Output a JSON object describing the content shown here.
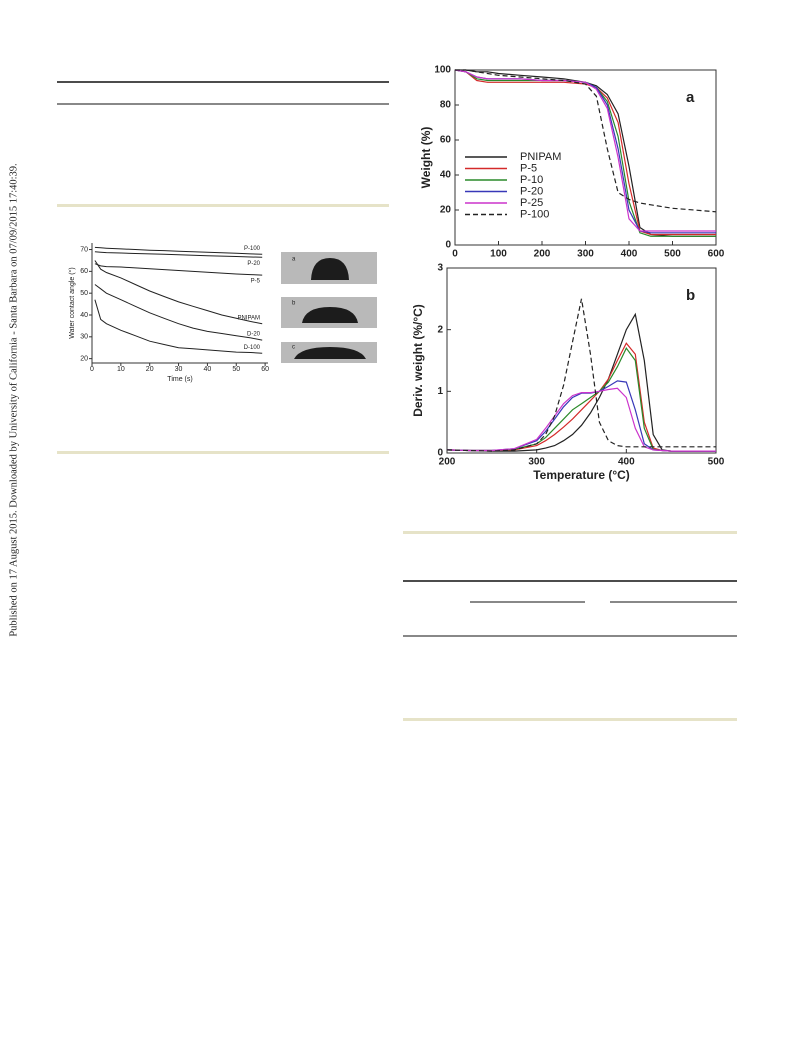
{
  "side_note": "Published on 17 August 2015. Downloaded by University of California - Santa Barbara on 07/09/2015 17:40:39.",
  "images": [
    {
      "label": "a"
    },
    {
      "label": "b"
    },
    {
      "label": "c"
    }
  ],
  "chart_data": [
    {
      "type": "line",
      "x_label": "Time (s)",
      "y_label": "Water contact angle (°)",
      "legend": "line-end",
      "x": [
        1,
        3,
        5,
        10,
        15,
        20,
        25,
        30,
        35,
        40,
        45,
        50,
        55,
        59
      ],
      "xlim": [
        0,
        61
      ],
      "ylim": [
        18,
        73
      ],
      "xticks": [
        0,
        10,
        20,
        30,
        40,
        50,
        60
      ],
      "yticks": [
        20,
        30,
        40,
        50,
        60,
        70
      ],
      "series": [
        {
          "name": "P-100",
          "color": "#222222",
          "values": [
            71,
            70.8,
            70.6,
            70.3,
            70,
            69.7,
            69.5,
            69.2,
            69,
            68.8,
            68.5,
            68.3,
            68,
            67.8
          ]
        },
        {
          "name": "P-20",
          "color": "#222222",
          "values": [
            69,
            68.8,
            68.6,
            68.4,
            68.2,
            68,
            67.8,
            67.6,
            67.4,
            67.2,
            67,
            66.8,
            66.6,
            66.5
          ]
        },
        {
          "name": "P-5",
          "color": "#222222",
          "values": [
            63.5,
            62.5,
            62.2,
            62,
            61.6,
            61.2,
            60.8,
            60.4,
            60,
            59.6,
            59.2,
            58.8,
            58.5,
            58.3
          ]
        },
        {
          "name": "PNIPAM",
          "color": "#222222",
          "values": [
            65,
            61,
            59.5,
            57,
            54,
            51,
            48.5,
            46,
            44,
            42,
            40,
            38.5,
            37,
            36
          ]
        },
        {
          "name": "D-20",
          "color": "#222222",
          "values": [
            54,
            52,
            50,
            47,
            44,
            41,
            38.5,
            36,
            34,
            32.5,
            31.5,
            30.5,
            29.5,
            28.5
          ]
        },
        {
          "name": "D-100",
          "color": "#222222",
          "values": [
            47,
            38,
            36,
            33,
            30.5,
            28,
            26.5,
            25,
            24.5,
            24,
            23.5,
            23,
            22.8,
            22.5
          ]
        }
      ]
    },
    {
      "type": "line",
      "panel_label": "a",
      "y_label": "Weight (%)",
      "legend": "left",
      "frame": true,
      "x": [
        0,
        25,
        50,
        75,
        100,
        150,
        200,
        250,
        300,
        325,
        350,
        375,
        400,
        425,
        450,
        500,
        550,
        600
      ],
      "xlim": [
        0,
        600
      ],
      "ylim": [
        0,
        100
      ],
      "xticks": [
        0,
        100,
        200,
        300,
        400,
        500,
        600
      ],
      "yticks": [
        0,
        20,
        40,
        60,
        80,
        100
      ],
      "series": [
        {
          "name": "PNIPAM",
          "color": "#222222",
          "style": "solid",
          "values": [
            100,
            100,
            99,
            99,
            98,
            97,
            96,
            95,
            93,
            91,
            86,
            75,
            45,
            10,
            6,
            5,
            5,
            5
          ]
        },
        {
          "name": "P-5",
          "color": "#d42a2a",
          "style": "solid",
          "values": [
            100,
            99,
            94,
            93,
            93,
            93,
            93,
            93,
            92,
            90,
            84,
            70,
            35,
            8,
            6,
            6,
            6,
            6
          ]
        },
        {
          "name": "P-10",
          "color": "#2a8a2a",
          "style": "solid",
          "values": [
            100,
            99,
            95,
            94,
            94,
            94,
            94,
            94,
            93,
            90,
            82,
            62,
            25,
            7,
            5,
            5,
            5,
            5
          ]
        },
        {
          "name": "P-20",
          "color": "#3838b8",
          "style": "solid",
          "values": [
            100,
            99,
            96,
            95,
            95,
            95,
            94,
            94,
            93,
            90,
            80,
            55,
            20,
            8,
            7,
            7,
            7,
            7
          ]
        },
        {
          "name": "P-25",
          "color": "#cc33cc",
          "style": "solid",
          "values": [
            100,
            99,
            96,
            95,
            95,
            95,
            94,
            94,
            93,
            89,
            78,
            50,
            15,
            8,
            8,
            8,
            8,
            8
          ]
        },
        {
          "name": "P-100",
          "color": "#222222",
          "style": "dashed",
          "values": [
            100,
            100,
            99,
            98,
            97,
            96,
            95,
            94,
            92,
            85,
            55,
            30,
            26,
            24,
            23,
            21,
            20,
            19
          ]
        }
      ]
    },
    {
      "type": "line",
      "panel_label": "b",
      "x_label": "Temperature (°C)",
      "y_label": "Deriv. weight (%/°C)",
      "frame": true,
      "x": [
        200,
        225,
        250,
        275,
        300,
        310,
        320,
        330,
        340,
        350,
        360,
        370,
        380,
        390,
        400,
        410,
        420,
        430,
        440,
        450,
        475,
        500
      ],
      "xlim": [
        200,
        500
      ],
      "ylim": [
        0,
        3
      ],
      "xticks": [
        200,
        300,
        400,
        500
      ],
      "yticks": [
        0,
        1,
        2,
        3
      ],
      "series": [
        {
          "color": "#222222",
          "style": "solid",
          "values": [
            0.05,
            0.04,
            0.03,
            0.03,
            0.05,
            0.08,
            0.12,
            0.2,
            0.3,
            0.45,
            0.65,
            0.9,
            1.2,
            1.6,
            2.0,
            2.25,
            1.5,
            0.3,
            0.05,
            0.03,
            0.03,
            0.03
          ]
        },
        {
          "color": "#d42a2a",
          "style": "solid",
          "values": [
            0.05,
            0.04,
            0.04,
            0.05,
            0.12,
            0.2,
            0.3,
            0.42,
            0.55,
            0.7,
            0.85,
            1.0,
            1.2,
            1.5,
            1.78,
            1.6,
            0.5,
            0.08,
            0.04,
            0.03,
            0.03,
            0.03
          ]
        },
        {
          "color": "#2a8a2a",
          "style": "solid",
          "values": [
            0.05,
            0.04,
            0.04,
            0.06,
            0.15,
            0.25,
            0.4,
            0.55,
            0.7,
            0.8,
            0.9,
            1.0,
            1.15,
            1.4,
            1.7,
            1.5,
            0.4,
            0.06,
            0.04,
            0.03,
            0.03,
            0.03
          ]
        },
        {
          "color": "#3838b8",
          "style": "solid",
          "values": [
            0.05,
            0.04,
            0.04,
            0.07,
            0.2,
            0.35,
            0.55,
            0.75,
            0.9,
            0.97,
            0.97,
            1.0,
            1.08,
            1.17,
            1.15,
            0.7,
            0.15,
            0.05,
            0.04,
            0.03,
            0.03,
            0.03
          ]
        },
        {
          "color": "#cc33cc",
          "style": "solid",
          "values": [
            0.05,
            0.04,
            0.04,
            0.07,
            0.22,
            0.4,
            0.6,
            0.8,
            0.93,
            0.98,
            0.98,
            1.0,
            1.03,
            1.05,
            0.9,
            0.4,
            0.1,
            0.05,
            0.04,
            0.03,
            0.03,
            0.03
          ]
        },
        {
          "color": "#222222",
          "style": "dashed",
          "values": [
            0.05,
            0.04,
            0.03,
            0.05,
            0.15,
            0.3,
            0.6,
            1.1,
            1.8,
            2.5,
            1.6,
            0.5,
            0.2,
            0.12,
            0.1,
            0.1,
            0.1,
            0.1,
            0.1,
            0.1,
            0.1,
            0.1
          ]
        }
      ]
    }
  ]
}
